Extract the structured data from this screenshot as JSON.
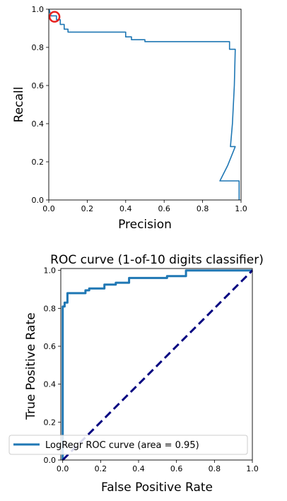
{
  "chart_data": [
    {
      "type": "line",
      "title": "",
      "xlabel": "Precision",
      "ylabel": "Recall",
      "xlim": [
        0.0,
        1.0
      ],
      "ylim": [
        0.0,
        1.0
      ],
      "xticks": [
        "0.0",
        "0.2",
        "0.4",
        "0.6",
        "0.8",
        "1.0"
      ],
      "yticks": [
        "0.0",
        "0.2",
        "0.4",
        "0.6",
        "0.8",
        "1.0"
      ],
      "grid": false,
      "legend": null,
      "series": [
        {
          "color": "#1f77b4",
          "points": [
            [
              0.0,
              1.0
            ],
            [
              0.005,
              0.99
            ],
            [
              0.005,
              0.98
            ],
            [
              0.01,
              0.98
            ],
            [
              0.01,
              0.965
            ],
            [
              0.04,
              0.965
            ],
            [
              0.04,
              0.945
            ],
            [
              0.06,
              0.945
            ],
            [
              0.06,
              0.92
            ],
            [
              0.08,
              0.92
            ],
            [
              0.08,
              0.895
            ],
            [
              0.1,
              0.895
            ],
            [
              0.1,
              0.88
            ],
            [
              0.4,
              0.88
            ],
            [
              0.4,
              0.855
            ],
            [
              0.43,
              0.855
            ],
            [
              0.43,
              0.84
            ],
            [
              0.5,
              0.84
            ],
            [
              0.5,
              0.83
            ],
            [
              0.94,
              0.83
            ],
            [
              0.94,
              0.79
            ],
            [
              0.97,
              0.79
            ],
            [
              0.965,
              0.6
            ],
            [
              0.955,
              0.4
            ],
            [
              0.945,
              0.28
            ],
            [
              0.97,
              0.28
            ],
            [
              0.93,
              0.18
            ],
            [
              0.89,
              0.1
            ],
            [
              0.99,
              0.1
            ],
            [
              0.99,
              0.0
            ]
          ]
        }
      ],
      "annotations": [
        {
          "type": "circle-marker",
          "color": "#e8201e",
          "x": 0.03,
          "y": 0.96
        }
      ]
    },
    {
      "type": "line",
      "title": "ROC curve (1-of-10 digits classifier)",
      "xlabel": "False Positive Rate",
      "ylabel": "True Positive Rate",
      "xlim": [
        -0.01,
        1.0
      ],
      "ylim": [
        0.0,
        1.01
      ],
      "xticks": [
        "0.0",
        "0.2",
        "0.4",
        "0.6",
        "0.8",
        "1.0"
      ],
      "yticks": [
        "0.0",
        "0.2",
        "0.4",
        "0.6",
        "0.8",
        "1.0"
      ],
      "grid": false,
      "legend": {
        "placement": "lower right"
      },
      "series": [
        {
          "name": "LogRegr ROC curve (area = 0.95)",
          "color": "#1f77b4",
          "points": [
            [
              0.0,
              0.0
            ],
            [
              0.0,
              0.81
            ],
            [
              0.01,
              0.81
            ],
            [
              0.01,
              0.83
            ],
            [
              0.025,
              0.83
            ],
            [
              0.025,
              0.88
            ],
            [
              0.12,
              0.88
            ],
            [
              0.12,
              0.895
            ],
            [
              0.14,
              0.895
            ],
            [
              0.14,
              0.905
            ],
            [
              0.22,
              0.905
            ],
            [
              0.22,
              0.925
            ],
            [
              0.28,
              0.925
            ],
            [
              0.28,
              0.935
            ],
            [
              0.35,
              0.935
            ],
            [
              0.35,
              0.96
            ],
            [
              0.55,
              0.96
            ],
            [
              0.55,
              0.97
            ],
            [
              0.65,
              0.97
            ],
            [
              0.65,
              1.0
            ],
            [
              1.0,
              1.0
            ]
          ]
        },
        {
          "color": "#000080",
          "dashed": true,
          "points": [
            [
              0.0,
              0.0
            ],
            [
              1.0,
              1.0
            ]
          ]
        }
      ]
    }
  ]
}
